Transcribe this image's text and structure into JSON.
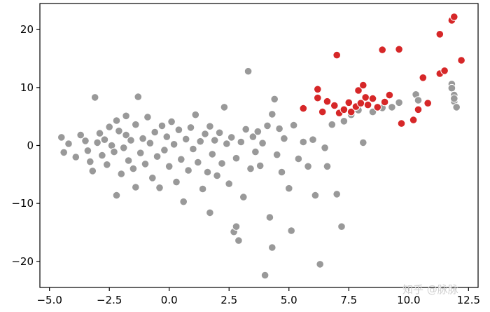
{
  "chart_data": {
    "type": "scatter",
    "title": "",
    "xlabel": "",
    "ylabel": "",
    "xlim": [
      -5.4,
      12.9
    ],
    "ylim": [
      -24.5,
      24.5
    ],
    "x_ticks": [
      {
        "value": -5.0,
        "label": "−5.0"
      },
      {
        "value": -2.5,
        "label": "−2.5"
      },
      {
        "value": 0.0,
        "label": "0.0"
      },
      {
        "value": 2.5,
        "label": "2.5"
      },
      {
        "value": 5.0,
        "label": "5.0"
      },
      {
        "value": 7.5,
        "label": "7.5"
      },
      {
        "value": 10.0,
        "label": "10.0"
      },
      {
        "value": 12.5,
        "label": "12.5"
      }
    ],
    "y_ticks": [
      {
        "value": -20,
        "label": "−20"
      },
      {
        "value": -10,
        "label": "−10"
      },
      {
        "value": 0,
        "label": "0"
      },
      {
        "value": 10,
        "label": "10"
      },
      {
        "value": 20,
        "label": "20"
      }
    ],
    "grid": false,
    "legend": "none",
    "series": [
      {
        "color": "#999999",
        "points": [
          [
            -4.5,
            1.4
          ],
          [
            -4.4,
            -1.2
          ],
          [
            -4.2,
            0.3
          ],
          [
            -3.9,
            -2.0
          ],
          [
            -3.7,
            1.8
          ],
          [
            -3.5,
            0.8
          ],
          [
            -3.4,
            -0.9
          ],
          [
            -3.3,
            -2.8
          ],
          [
            -3.2,
            -4.4
          ],
          [
            -3.1,
            8.3
          ],
          [
            -3.0,
            0.5
          ],
          [
            -2.9,
            2.1
          ],
          [
            -2.8,
            -1.7
          ],
          [
            -2.7,
            1.0
          ],
          [
            -2.6,
            -3.3
          ],
          [
            -2.5,
            3.2
          ],
          [
            -2.4,
            0.0
          ],
          [
            -2.3,
            -1.1
          ],
          [
            -2.2,
            -8.6
          ],
          [
            -2.2,
            4.3
          ],
          [
            -2.1,
            2.5
          ],
          [
            -2.0,
            -4.9
          ],
          [
            -1.9,
            -0.4
          ],
          [
            -1.8,
            5.1
          ],
          [
            -1.8,
            1.8
          ],
          [
            -1.7,
            -2.6
          ],
          [
            -1.6,
            0.9
          ],
          [
            -1.5,
            -4.0
          ],
          [
            -1.4,
            -7.2
          ],
          [
            -1.4,
            3.6
          ],
          [
            -1.3,
            8.4
          ],
          [
            -1.2,
            -1.3
          ],
          [
            -1.1,
            1.2
          ],
          [
            -1.0,
            -3.2
          ],
          [
            -0.9,
            4.9
          ],
          [
            -0.8,
            0.4
          ],
          [
            -0.7,
            -5.6
          ],
          [
            -0.6,
            2.3
          ],
          [
            -0.5,
            -1.9
          ],
          [
            -0.4,
            -7.3
          ],
          [
            -0.3,
            3.4
          ],
          [
            -0.2,
            -0.8
          ],
          [
            -0.1,
            1.5
          ],
          [
            0.0,
            -3.6
          ],
          [
            0.1,
            4.1
          ],
          [
            0.2,
            0.2
          ],
          [
            0.3,
            -6.3
          ],
          [
            0.4,
            2.7
          ],
          [
            0.5,
            -2.4
          ],
          [
            0.6,
            -9.7
          ],
          [
            0.7,
            1.1
          ],
          [
            0.8,
            -4.3
          ],
          [
            0.9,
            3.1
          ],
          [
            1.0,
            -0.6
          ],
          [
            1.1,
            5.3
          ],
          [
            1.2,
            -2.9
          ],
          [
            1.3,
            0.7
          ],
          [
            1.4,
            -7.5
          ],
          [
            1.5,
            2.0
          ],
          [
            1.6,
            -4.6
          ],
          [
            1.7,
            -11.6
          ],
          [
            1.7,
            3.3
          ],
          [
            1.8,
            -1.5
          ],
          [
            1.9,
            0.9
          ],
          [
            2.0,
            -5.2
          ],
          [
            2.1,
            2.2
          ],
          [
            2.2,
            -3.1
          ],
          [
            2.3,
            6.6
          ],
          [
            2.4,
            0.3
          ],
          [
            2.5,
            -6.6
          ],
          [
            2.6,
            1.4
          ],
          [
            2.7,
            -14.9
          ],
          [
            2.8,
            -2.2
          ],
          [
            2.8,
            -14.0
          ],
          [
            2.9,
            -16.4
          ],
          [
            3.0,
            0.6
          ],
          [
            3.1,
            -8.9
          ],
          [
            3.2,
            2.8
          ],
          [
            3.3,
            12.8
          ],
          [
            3.4,
            -4.0
          ],
          [
            3.5,
            1.5
          ],
          [
            3.6,
            -1.1
          ],
          [
            3.7,
            2.4
          ],
          [
            3.8,
            -3.5
          ],
          [
            3.9,
            0.4
          ],
          [
            4.0,
            -22.4
          ],
          [
            4.1,
            3.4
          ],
          [
            4.2,
            -12.4
          ],
          [
            4.3,
            5.4
          ],
          [
            4.3,
            -17.6
          ],
          [
            4.4,
            8.0
          ],
          [
            4.5,
            -1.6
          ],
          [
            4.6,
            2.9
          ],
          [
            4.7,
            -4.6
          ],
          [
            4.8,
            1.2
          ],
          [
            5.0,
            -7.4
          ],
          [
            5.1,
            -14.7
          ],
          [
            5.2,
            3.5
          ],
          [
            5.4,
            -2.3
          ],
          [
            5.6,
            0.6
          ],
          [
            5.8,
            -3.6
          ],
          [
            6.0,
            1.0
          ],
          [
            6.1,
            -8.6
          ],
          [
            6.3,
            -20.5
          ],
          [
            6.5,
            -0.4
          ],
          [
            6.6,
            -3.6
          ],
          [
            6.8,
            3.6
          ],
          [
            7.0,
            -8.4
          ],
          [
            7.2,
            -14.0
          ],
          [
            7.3,
            4.2
          ],
          [
            7.6,
            5.3
          ],
          [
            7.9,
            6.1
          ],
          [
            8.1,
            0.5
          ],
          [
            8.5,
            5.8
          ],
          [
            8.9,
            6.5
          ],
          [
            9.3,
            6.6
          ],
          [
            9.6,
            7.4
          ],
          [
            10.3,
            8.8
          ],
          [
            10.4,
            7.8
          ],
          [
            11.8,
            10.6
          ],
          [
            11.8,
            9.9
          ],
          [
            11.9,
            8.7
          ],
          [
            11.9,
            7.6
          ],
          [
            12.0,
            6.6
          ],
          [
            11.9,
            8.1
          ]
        ]
      },
      {
        "color": "#d62728",
        "points": [
          [
            5.6,
            6.4
          ],
          [
            6.2,
            9.7
          ],
          [
            6.2,
            8.2
          ],
          [
            6.4,
            5.8
          ],
          [
            6.6,
            7.6
          ],
          [
            6.9,
            6.9
          ],
          [
            7.0,
            15.6
          ],
          [
            7.1,
            5.6
          ],
          [
            7.3,
            6.2
          ],
          [
            7.5,
            7.4
          ],
          [
            7.6,
            5.8
          ],
          [
            7.8,
            6.7
          ],
          [
            7.9,
            9.5
          ],
          [
            8.0,
            7.3
          ],
          [
            8.1,
            10.4
          ],
          [
            8.2,
            8.3
          ],
          [
            8.3,
            7.0
          ],
          [
            8.5,
            8.1
          ],
          [
            8.7,
            6.6
          ],
          [
            8.9,
            16.5
          ],
          [
            9.0,
            7.5
          ],
          [
            9.2,
            8.7
          ],
          [
            9.6,
            16.6
          ],
          [
            9.7,
            3.8
          ],
          [
            10.2,
            4.4
          ],
          [
            10.4,
            6.2
          ],
          [
            10.6,
            11.7
          ],
          [
            10.8,
            7.3
          ],
          [
            11.3,
            12.4
          ],
          [
            11.5,
            12.9
          ],
          [
            11.3,
            19.2
          ],
          [
            11.8,
            21.6
          ],
          [
            11.9,
            22.2
          ],
          [
            12.2,
            14.7
          ]
        ]
      }
    ]
  },
  "watermark": {
    "text": "知乎 @脉脉"
  }
}
